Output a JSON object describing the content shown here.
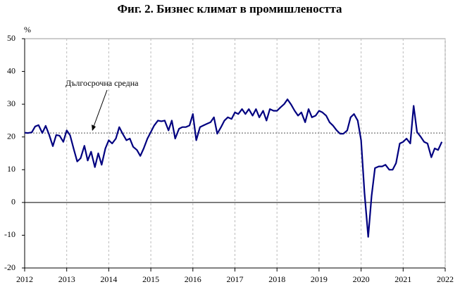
{
  "chart_data": {
    "type": "line",
    "title": "Фиг. 2. Бизнес климат в промишлеността",
    "y_label": "%",
    "xlim": [
      2012,
      2022
    ],
    "xticks": [
      2012,
      2013,
      2014,
      2015,
      2016,
      2017,
      2018,
      2019,
      2020,
      2021,
      2022
    ],
    "ylim": [
      -20,
      50
    ],
    "yticks": [
      -20,
      -10,
      0,
      10,
      20,
      30,
      40,
      50
    ],
    "grid": true,
    "reference_line": {
      "label": "Дългосрочна средна",
      "value": 21.2,
      "color": "#777777"
    },
    "series": [
      {
        "color": "#000080",
        "x": [
          2012,
          2012.08,
          2012.17,
          2012.25,
          2012.33,
          2012.42,
          2012.5,
          2012.58,
          2012.67,
          2012.75,
          2012.83,
          2012.92,
          2013,
          2013.08,
          2013.17,
          2013.25,
          2013.33,
          2013.42,
          2013.5,
          2013.58,
          2013.67,
          2013.75,
          2013.83,
          2013.92,
          2014,
          2014.08,
          2014.17,
          2014.25,
          2014.33,
          2014.42,
          2014.5,
          2014.58,
          2014.67,
          2014.75,
          2014.83,
          2014.92,
          2015,
          2015.08,
          2015.17,
          2015.25,
          2015.33,
          2015.42,
          2015.5,
          2015.58,
          2015.67,
          2015.75,
          2015.83,
          2015.92,
          2016,
          2016.08,
          2016.17,
          2016.25,
          2016.33,
          2016.42,
          2016.5,
          2016.58,
          2016.67,
          2016.75,
          2016.83,
          2016.92,
          2017,
          2017.08,
          2017.17,
          2017.25,
          2017.33,
          2017.42,
          2017.5,
          2017.58,
          2017.67,
          2017.75,
          2017.83,
          2017.92,
          2018,
          2018.08,
          2018.17,
          2018.25,
          2018.33,
          2018.42,
          2018.5,
          2018.58,
          2018.67,
          2018.75,
          2018.83,
          2018.92,
          2019,
          2019.08,
          2019.17,
          2019.25,
          2019.33,
          2019.42,
          2019.5,
          2019.58,
          2019.67,
          2019.75,
          2019.83,
          2019.92,
          2020,
          2020.08,
          2020.17,
          2020.25,
          2020.33,
          2020.42,
          2020.5,
          2020.58,
          2020.67,
          2020.75,
          2020.83,
          2020.92,
          2021,
          2021.08,
          2021.17,
          2021.25,
          2021.33,
          2021.42,
          2021.5,
          2021.58,
          2021.67,
          2021.75,
          2021.83,
          2021.92
        ],
        "values": [
          21.3,
          21.2,
          21.4,
          23.2,
          23.6,
          21.2,
          23.4,
          20.8,
          17.2,
          20.6,
          20.4,
          18.5,
          22.0,
          20.5,
          16.2,
          12.5,
          13.5,
          17.3,
          12.8,
          15.5,
          10.8,
          15.0,
          11.5,
          16.5,
          19.0,
          18.0,
          19.5,
          23.0,
          21.0,
          19.0,
          19.5,
          17.0,
          16.0,
          14.2,
          16.5,
          19.5,
          21.5,
          23.5,
          25.0,
          24.8,
          25.0,
          22.0,
          25.0,
          19.5,
          22.5,
          23.0,
          23.0,
          23.5,
          27.0,
          19.0,
          23.0,
          23.5,
          24.0,
          24.5,
          26.0,
          21.0,
          23.0,
          25.0,
          26.0,
          25.5,
          27.5,
          27.0,
          28.5,
          27.0,
          28.5,
          26.5,
          28.5,
          26.0,
          28.0,
          25.0,
          28.5,
          28.0,
          28.0,
          29.0,
          30.0,
          31.5,
          30.0,
          28.0,
          26.5,
          27.5,
          24.5,
          28.5,
          26.0,
          26.5,
          28.0,
          27.5,
          26.5,
          24.5,
          23.5,
          22.0,
          21.0,
          21.0,
          22.0,
          26.0,
          27.0,
          25.0,
          19.0,
          3.0,
          -10.5,
          2.0,
          10.5,
          11.0,
          11.0,
          11.5,
          10.0,
          10.0,
          12.0,
          18.0,
          18.5,
          19.5,
          18.0,
          29.5,
          21.5,
          20.0,
          18.5,
          18.0,
          13.8,
          16.5,
          16.0,
          18.5
        ]
      }
    ]
  }
}
